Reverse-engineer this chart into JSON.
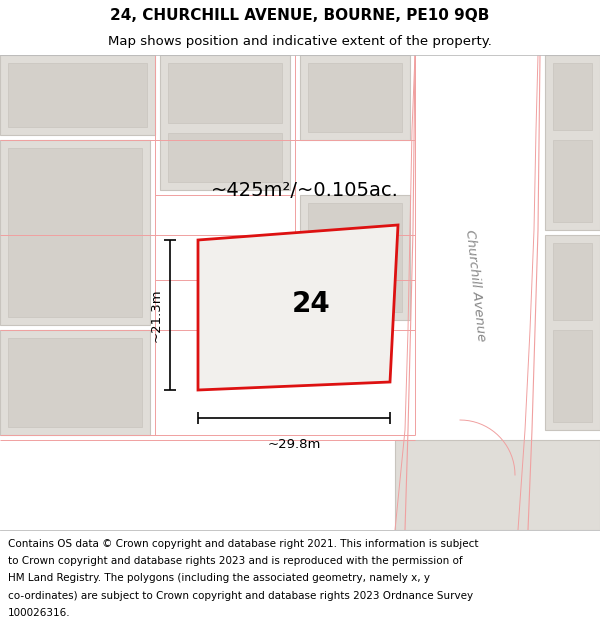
{
  "title_line1": "24, CHURCHILL AVENUE, BOURNE, PE10 9QB",
  "title_line2": "Map shows position and indicative extent of the property.",
  "footer_lines": [
    "Contains OS data © Crown copyright and database right 2021. This information is subject",
    "to Crown copyright and database rights 2023 and is reproduced with the permission of",
    "HM Land Registry. The polygons (including the associated geometry, namely x, y",
    "co-ordinates) are subject to Crown copyright and database rights 2023 Ordnance Survey",
    "100026316."
  ],
  "map_bg": "#f2f0ed",
  "block_fc": "#e0ddd8",
  "block_ec": "#c8c4be",
  "road_line_color": "#f0a0a0",
  "plot_border_color": "#dd1111",
  "plot_fill": "#f2f0ed",
  "street_label": "Churchill Avenue",
  "area_label": "~425m²/~0.105ac.",
  "house_number": "24",
  "dim_width": "~29.8m",
  "dim_height": "~21.3m",
  "title_fontsize": 11,
  "subtitle_fontsize": 9.5,
  "footer_fontsize": 7.5,
  "area_fontsize": 14,
  "number_fontsize": 20
}
